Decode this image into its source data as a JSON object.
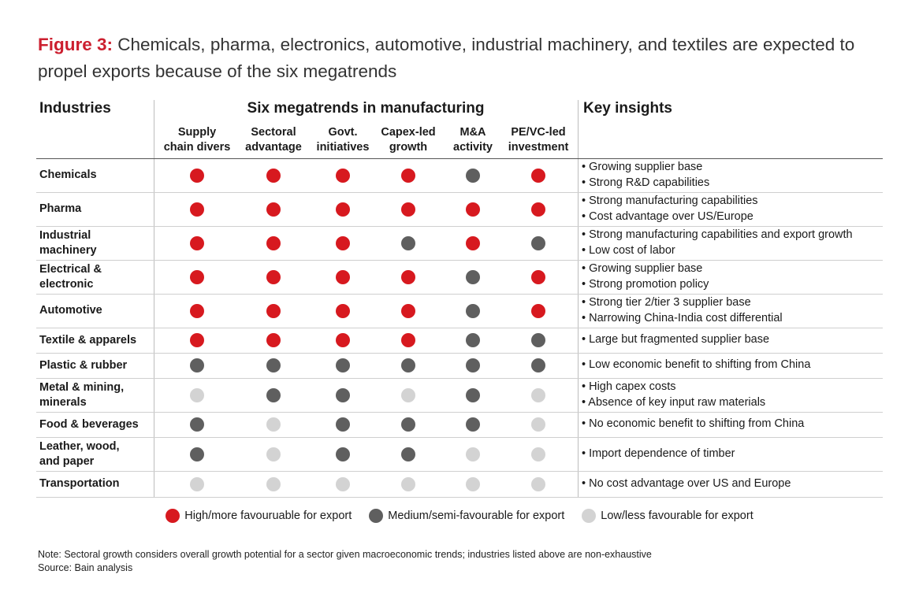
{
  "title": {
    "label": "Figure 3:",
    "text": "Chemicals, pharma, electronics, automotive, industrial machinery, and textiles are expected to propel exports because of the six megatrends"
  },
  "headers": {
    "industries": "Industries",
    "megatrends": "Six megatrends in manufacturing",
    "insights": "Key insights"
  },
  "colors": {
    "high": "#d7191f",
    "medium": "#5f5f5f",
    "low": "#d3d3d3"
  },
  "chart_data": {
    "type": "table",
    "columns": [
      [
        "Supply",
        "chain divers"
      ],
      [
        "Sectoral",
        "advantage"
      ],
      [
        "Govt.",
        "initiatives"
      ],
      [
        "Capex-led",
        "growth"
      ],
      [
        "M&A",
        "activity"
      ],
      [
        "PE/VC-led",
        "investment"
      ]
    ],
    "rows": [
      {
        "industry": [
          "Chemicals"
        ],
        "ratings": [
          "high",
          "high",
          "high",
          "high",
          "medium",
          "high"
        ],
        "insights": [
          "• Growing supplier base",
          "• Strong R&D capabilities"
        ]
      },
      {
        "industry": [
          "Pharma"
        ],
        "ratings": [
          "high",
          "high",
          "high",
          "high",
          "high",
          "high"
        ],
        "insights": [
          "• Strong manufacturing capabilities",
          "• Cost advantage over US/Europe"
        ]
      },
      {
        "industry": [
          "Industrial",
          "machinery"
        ],
        "ratings": [
          "high",
          "high",
          "high",
          "medium",
          "high",
          "medium"
        ],
        "insights": [
          "• Strong manufacturing capabilities and export growth",
          "• Low cost of labor"
        ]
      },
      {
        "industry": [
          "Electrical &",
          "electronic"
        ],
        "ratings": [
          "high",
          "high",
          "high",
          "high",
          "medium",
          "high"
        ],
        "insights": [
          "• Growing supplier base",
          "• Strong promotion policy"
        ]
      },
      {
        "industry": [
          "Automotive"
        ],
        "ratings": [
          "high",
          "high",
          "high",
          "high",
          "medium",
          "high"
        ],
        "insights": [
          "• Strong tier 2/tier 3 supplier base",
          "• Narrowing China-India cost differential"
        ]
      },
      {
        "industry": [
          "Textile & apparels"
        ],
        "ratings": [
          "high",
          "high",
          "high",
          "high",
          "medium",
          "medium"
        ],
        "insights": [
          "• Large but fragmented supplier base"
        ]
      },
      {
        "industry": [
          "Plastic & rubber"
        ],
        "ratings": [
          "medium",
          "medium",
          "medium",
          "medium",
          "medium",
          "medium"
        ],
        "insights": [
          "• Low economic benefit to shifting from China"
        ]
      },
      {
        "industry": [
          "Metal & mining,",
          "minerals"
        ],
        "ratings": [
          "low",
          "medium",
          "medium",
          "low",
          "medium",
          "low"
        ],
        "insights": [
          "• High capex costs",
          "• Absence of key input raw materials"
        ]
      },
      {
        "industry": [
          "Food & beverages"
        ],
        "ratings": [
          "medium",
          "low",
          "medium",
          "medium",
          "medium",
          "low"
        ],
        "insights": [
          "• No economic benefit to shifting from China"
        ]
      },
      {
        "industry": [
          "Leather, wood,",
          "and paper"
        ],
        "ratings": [
          "medium",
          "low",
          "medium",
          "medium",
          "low",
          "low"
        ],
        "insights": [
          "• Import dependence of timber"
        ]
      },
      {
        "industry": [
          "Transportation"
        ],
        "ratings": [
          "low",
          "low",
          "low",
          "low",
          "low",
          "low"
        ],
        "insights": [
          "• No cost advantage over US and Europe"
        ]
      }
    ],
    "legend": [
      {
        "key": "high",
        "label": "High/more favouruable for export"
      },
      {
        "key": "medium",
        "label": "Medium/semi-favourable for export"
      },
      {
        "key": "low",
        "label": "Low/less favourable for export"
      }
    ]
  },
  "note": "Note: Sectoral growth considers overall growth potential for a sector given macroeconomic trends; industries listed above are non-exhaustive",
  "source": "Source: Bain analysis"
}
